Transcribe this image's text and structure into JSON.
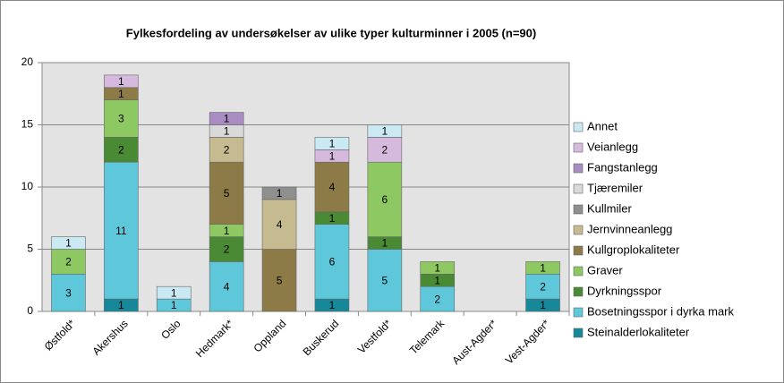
{
  "chart_data": {
    "type": "stacked_bar",
    "title": "Fylkesfordeling av undersøkelser av ulike typer kulturminner  i 2005 (n=90)",
    "categories": [
      "Østfold*",
      "Akershus",
      "Oslo",
      "Hedmark*",
      "Oppland",
      "Buskerud",
      "Vestfold*",
      "Telemark",
      "Aust-Agder*",
      "Vest-Agder*"
    ],
    "series": [
      {
        "name": "Steinalderlokaliteter",
        "color": "#17879a",
        "values": [
          0,
          1,
          0,
          0,
          0,
          1,
          0,
          0,
          0,
          1
        ]
      },
      {
        "name": "Bosetningsspor i dyrka mark",
        "color": "#5ec8da",
        "values": [
          3,
          11,
          1,
          4,
          0,
          6,
          5,
          2,
          0,
          2
        ]
      },
      {
        "name": "Dyrkningsspor",
        "color": "#4a8a35",
        "values": [
          0,
          2,
          0,
          2,
          0,
          1,
          1,
          1,
          0,
          0
        ]
      },
      {
        "name": "Graver",
        "color": "#8ec862",
        "values": [
          2,
          3,
          0,
          1,
          0,
          0,
          6,
          1,
          0,
          1
        ]
      },
      {
        "name": "Kullgroplokaliteter",
        "color": "#8c7b47",
        "values": [
          0,
          1,
          0,
          5,
          5,
          4,
          0,
          0,
          0,
          0
        ]
      },
      {
        "name": "Jernvinneanlegg",
        "color": "#c6ba90",
        "values": [
          0,
          0,
          0,
          2,
          4,
          0,
          0,
          0,
          0,
          0
        ]
      },
      {
        "name": "Kullmiler",
        "color": "#8f8f8f",
        "values": [
          0,
          0,
          0,
          0,
          1,
          0,
          0,
          0,
          0,
          0
        ]
      },
      {
        "name": "Tjæremiler",
        "color": "#d9d9d9",
        "values": [
          0,
          0,
          0,
          1,
          0,
          0,
          0,
          0,
          0,
          0
        ]
      },
      {
        "name": "Fangstanlegg",
        "color": "#a98cc2",
        "values": [
          0,
          0,
          0,
          1,
          0,
          0,
          0,
          0,
          0,
          0
        ]
      },
      {
        "name": "Veianlegg",
        "color": "#d6bade",
        "values": [
          0,
          1,
          0,
          0,
          0,
          1,
          2,
          0,
          0,
          0
        ]
      },
      {
        "name": "Annet",
        "color": "#cae9f2",
        "values": [
          1,
          0,
          1,
          0,
          0,
          1,
          1,
          0,
          0,
          0
        ]
      }
    ],
    "ylim": [
      0,
      20
    ],
    "yticks": [
      0,
      5,
      10,
      15,
      20
    ],
    "grid": true
  }
}
